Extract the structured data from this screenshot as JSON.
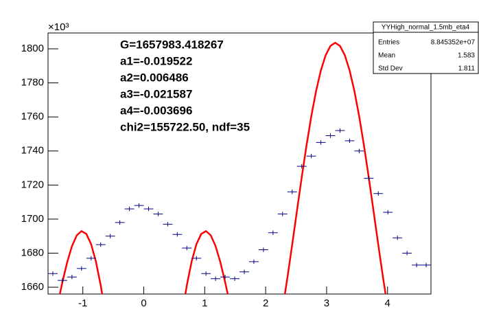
{
  "chart_data": {
    "type": "histogram",
    "y_multiplier": "×10³",
    "bins": [
      -1.5708,
      -1.4137,
      -1.2566,
      -1.0996,
      -0.9425,
      -0.7854,
      -0.6283,
      -0.4712,
      -0.3142,
      -0.1571,
      0,
      0.1571,
      0.3142,
      0.4712,
      0.6283,
      0.7854,
      0.9425,
      1.0996,
      1.2566,
      1.4137,
      1.5708,
      1.7279,
      1.885,
      2.042,
      2.1991,
      2.3562,
      2.5133,
      2.6704,
      2.8274,
      2.9845,
      3.1416,
      3.2987,
      3.4558,
      3.6128,
      3.7699,
      3.927,
      4.0841,
      4.2412,
      4.3982,
      4.5553,
      4.7124
    ],
    "values": [
      1668,
      1664,
      1666,
      1671,
      1677,
      1685,
      1690,
      1698,
      1706,
      1708,
      1706,
      1703,
      1697,
      1691,
      1683,
      1677,
      1668,
      1665,
      1666,
      1665,
      1669,
      1675,
      1682,
      1692,
      1703,
      1716,
      1731,
      1737,
      1745,
      1749,
      1752,
      1746,
      1740,
      1724,
      1715,
      1704,
      1689,
      1680,
      1673,
      1673
    ],
    "errors": [
      1.3,
      1.3,
      1.3,
      1.3,
      1.3,
      1.3,
      1.3,
      1.3,
      1.3,
      1.3,
      1.3,
      1.3,
      1.3,
      1.3,
      1.3,
      1.3,
      1.3,
      1.3,
      1.3,
      1.3,
      1.3,
      1.3,
      1.3,
      1.3,
      1.3,
      1.3,
      1.3,
      1.3,
      1.3,
      1.3,
      1.3,
      1.3,
      1.3,
      1.3,
      1.3,
      1.3,
      1.3,
      1.3,
      1.3,
      1.3
    ],
    "color": "#000080",
    "fit": {
      "type": "line",
      "color": "#ff0000",
      "x": [
        -1.4137,
        -1.3352,
        -1.2566,
        -1.1781,
        -1.0996,
        -1.021,
        -0.9425,
        -0.8639,
        -0.7854,
        -0.7069,
        -0.6283,
        0,
        0.6283,
        0.7069,
        0.7854,
        0.8639,
        0.9425,
        1.021,
        1.0996,
        1.1781,
        1.2566,
        1.3352,
        1.4137,
        2,
        2.2777,
        2.3562,
        2.4347,
        2.5133,
        2.5918,
        2.6704,
        2.7489,
        2.8274,
        2.906,
        2.9845,
        3.0631,
        3.1416,
        3.2201,
        3.2987,
        3.3772,
        3.4558,
        3.5343,
        3.6128,
        3.6914,
        3.7699,
        3.8485,
        3.927,
        4.0055
      ],
      "values": [
        1649.98,
        1662.99,
        1674.7,
        1684.14,
        1690.44,
        1692.96,
        1691.28,
        1685.27,
        1675.08,
        1661.18,
        1644.29,
        null,
        1644.29,
        1661.18,
        1675.08,
        1685.27,
        1691.28,
        1692.96,
        1690.44,
        1684.14,
        1674.7,
        1662.99,
        1649.98,
        null,
        1647.28,
        1665.4,
        1684.83,
        1704.79,
        1724.53,
        1743.29,
        1760.39,
        1775.24,
        1787.32,
        1796.24,
        1801.71,
        1803.55,
        1801.71,
        1796.24,
        1787.32,
        1775.24,
        1760.39,
        1743.29,
        1724.53,
        1704.79,
        1684.83,
        1665.4,
        1647.28
      ]
    },
    "xlim": [
      -1.5708,
      4.7124
    ],
    "ylim": [
      1656,
      1809.3
    ],
    "xticks": [
      -1,
      0,
      1,
      2,
      3,
      4
    ],
    "yticks": [
      1660,
      1680,
      1700,
      1720,
      1740,
      1760,
      1780,
      1800
    ],
    "annotations": [
      "G=1657983.418267",
      "a1=-0.019522",
      "a2=0.006486",
      "a3=-0.021587",
      "a4=-0.003696",
      "chi2=155722.50, ndf=35"
    ],
    "stats": {
      "title": "YYHigh_normal_1.5mb_eta4",
      "rows": [
        [
          "Entries",
          "8.845352e+07"
        ],
        [
          "Mean",
          "1.583"
        ],
        [
          "Std Dev",
          "1.811"
        ]
      ]
    }
  }
}
